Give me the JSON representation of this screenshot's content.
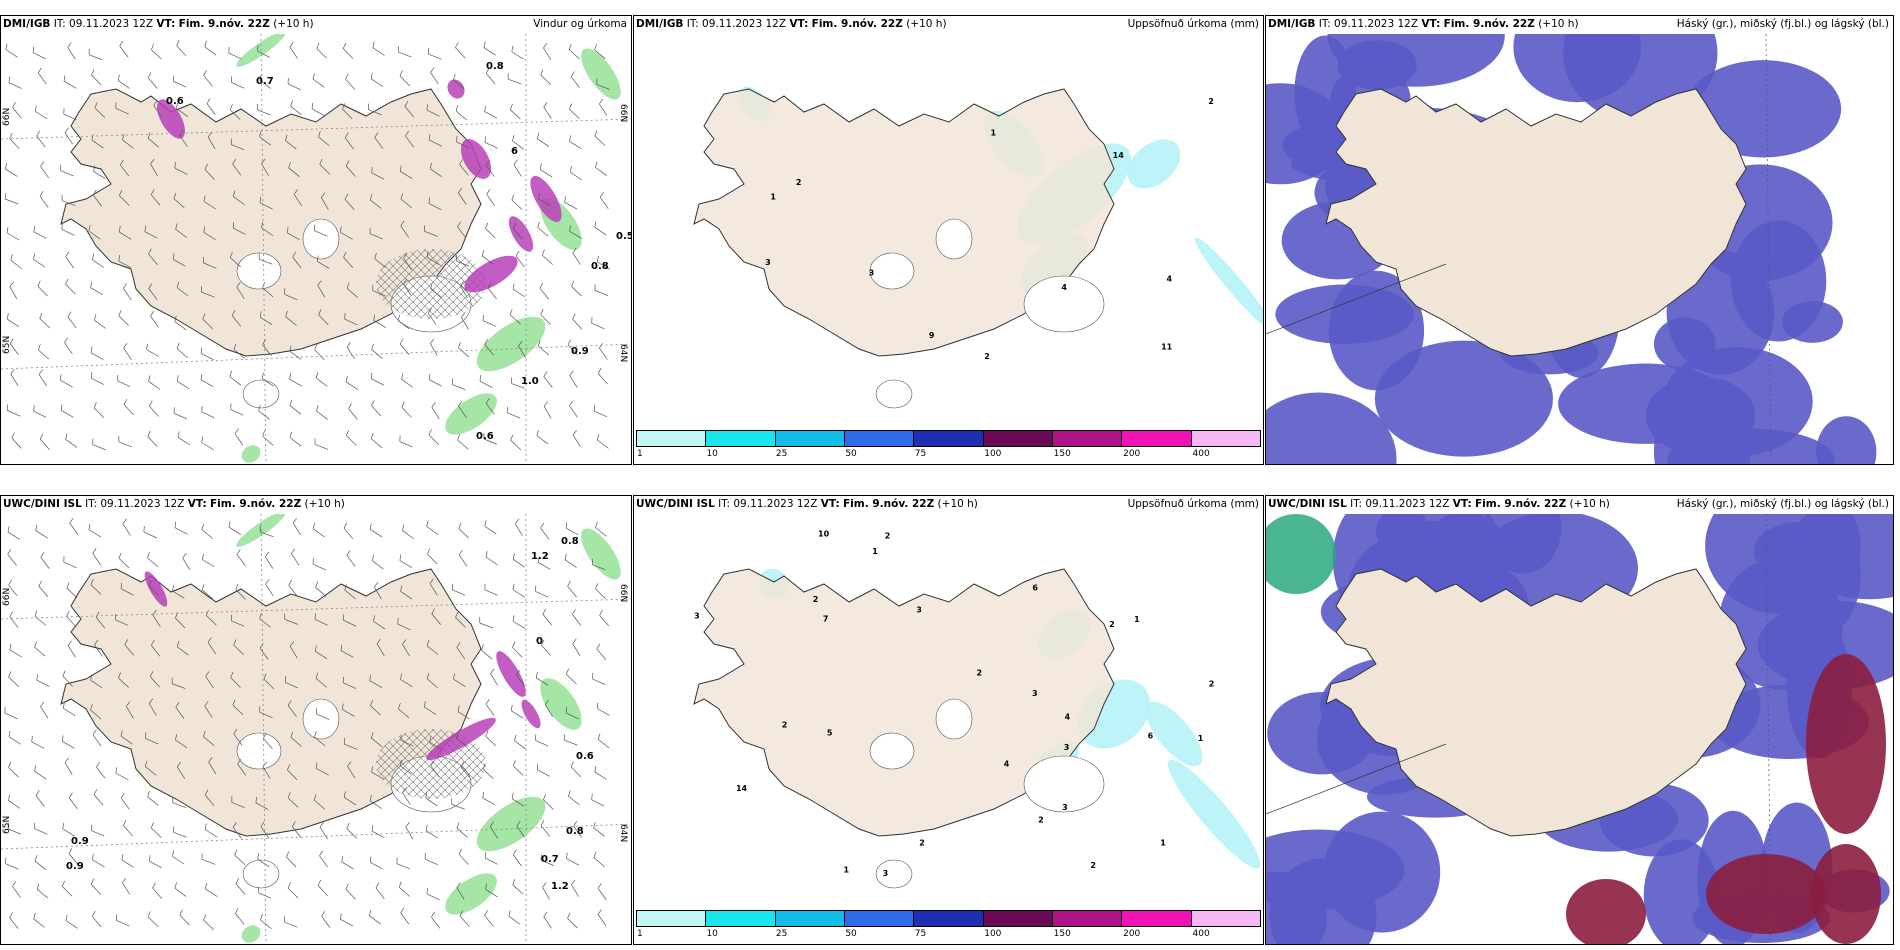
{
  "colors": {
    "land": "#f1e5d8",
    "land_alt": "#eadbcb",
    "precip_green": "#8fdf8f",
    "precip_magenta": "#b93fb9",
    "accum_cyan": "#b5f3f6",
    "cloud_high_green": "#2aa87f",
    "cloud_mid_blue": "#5a5ac8",
    "cloud_low_red": "#8b1e3f"
  },
  "colorbar": {
    "colors": [
      "#c3f7f7",
      "#19e6ec",
      "#11bde8",
      "#2f6be6",
      "#1f2fb3",
      "#6a0a55",
      "#b0128a",
      "#f012b5",
      "#f6b8f4"
    ],
    "ticks": [
      "1",
      "10",
      "25",
      "50",
      "75",
      "100",
      "150",
      "200",
      "400"
    ]
  },
  "rows": [
    {
      "panels": [
        {
          "kind": "wind",
          "model": "DMI/IGB",
          "it_label": "IT:",
          "it_value": "09.11.2023 12Z",
          "vt_label": "VT:",
          "vt_value": "Fim. 9.nóv. 22Z",
          "lead": "(+10 h)",
          "title": "Vindur og úrkoma",
          "axis_labels": [
            "66N",
            "66N",
            "65N",
            "64N",
            "20W",
            "15W"
          ],
          "values": [
            "0.7",
            "0.8",
            "0.6",
            "6",
            "0.5",
            "0.8",
            "0.9",
            "1.0",
            "0.6"
          ]
        },
        {
          "kind": "accum",
          "model": "DMI/IGB",
          "it_label": "IT:",
          "it_value": "09.11.2023 12Z",
          "vt_label": "VT:",
          "vt_value": "Fim. 9.nóv. 22Z",
          "lead": "(+10 h)",
          "title": "Uppsöfnuð úrkoma (mm)",
          "values": [
            "1",
            "4",
            "3",
            "3",
            "2",
            "9",
            "14",
            "11",
            "2",
            "4",
            "1",
            "2"
          ]
        },
        {
          "kind": "cloud",
          "model": "DMI/IGB",
          "it_label": "IT:",
          "it_value": "09.11.2023 12Z",
          "vt_label": "VT:",
          "vt_value": "Fim. 9.nóv. 22Z",
          "lead": "(+10 h)",
          "title": "Háský (gr.), miðský (fj.bl.) og lágský (bl.)"
        }
      ]
    },
    {
      "panels": [
        {
          "kind": "wind",
          "model": "UWC/DINI ISL",
          "it_label": "IT:",
          "it_value": "09.11.2023 12Z",
          "vt_label": "VT:",
          "vt_value": "Fim. 9.nóv. 22Z",
          "lead": "(+10 h)",
          "title": "",
          "axis_labels": [
            "66N",
            "66N",
            "65N",
            "64N",
            "20W",
            "15W"
          ],
          "values": [
            "0.8",
            "1.2",
            "0.6",
            "0.9",
            "0.8",
            "0.7",
            "1.2",
            "0.9",
            "0"
          ]
        },
        {
          "kind": "accum",
          "model": "UWC/DINI ISL",
          "it_label": "IT:",
          "it_value": "09.11.2023 12Z",
          "vt_label": "VT:",
          "vt_value": "Fim. 9.nóv. 22Z",
          "lead": "(+10 h)",
          "title": "Uppsöfnuð úrkoma (mm)",
          "values": [
            "1",
            "2",
            "2",
            "3",
            "2",
            "1",
            "2",
            "1",
            "2",
            "3",
            "3",
            "10",
            "14",
            "6",
            "2",
            "2",
            "1",
            "3",
            "7",
            "5",
            "4",
            "6",
            "2",
            "3",
            "3",
            "4",
            "1",
            "2"
          ]
        },
        {
          "kind": "cloud",
          "model": "UWC/DINI ISL",
          "it_label": "IT:",
          "it_value": "09.11.2023 12Z",
          "vt_label": "VT:",
          "vt_value": "Fim. 9.nóv. 22Z",
          "lead": "(+10 h)",
          "title": "Háský (gr.), miðský (fj.bl.) og lágský (bl.)"
        }
      ]
    }
  ]
}
